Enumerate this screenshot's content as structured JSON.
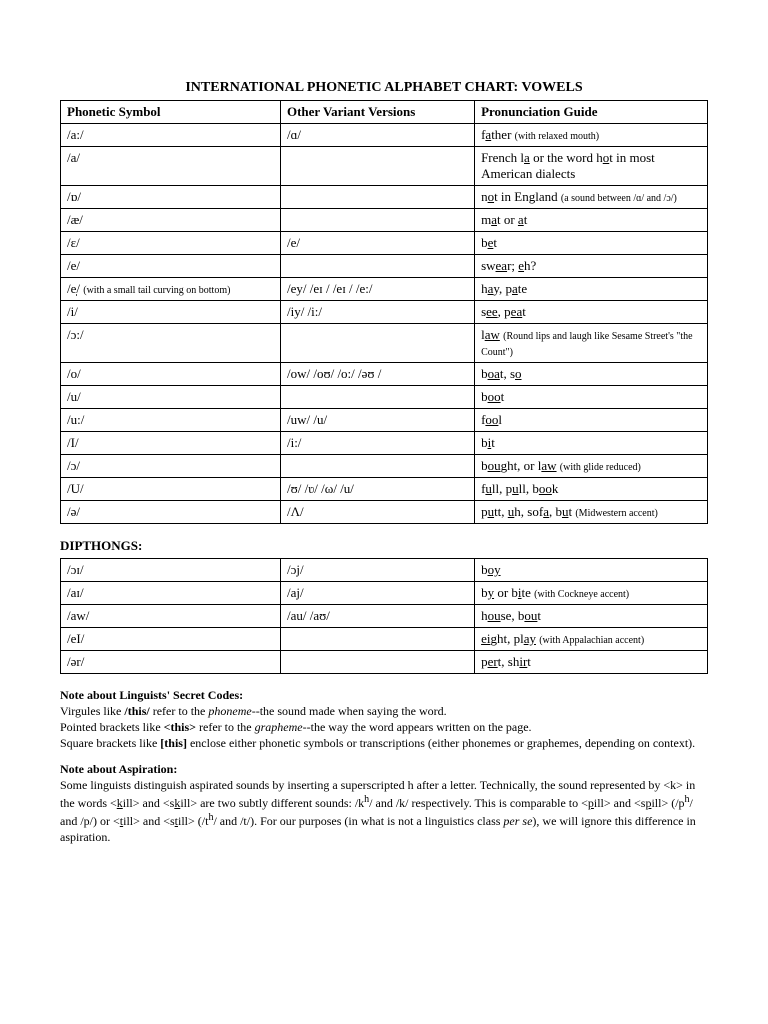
{
  "title": "INTERNATIONAL PHONETIC ALPHABET CHART: VOWELS",
  "headers": {
    "c1": "Phonetic Symbol",
    "c2": "Other Variant Versions",
    "c3": "Pronunciation Guide"
  },
  "vowels": [
    {
      "c1": "/a:/",
      "c2": "/ɑ/",
      "c3": "f<u>a</u>ther <span class='small'>(with relaxed mouth)</span>"
    },
    {
      "c1": "/a/",
      "c2": "",
      "c3": "French l<u>a</u> or the word h<u>o</u>t in most American dialects"
    },
    {
      "c1": "/ɒ/",
      "c2": "",
      "c3": "n<u>o</u>t in England <span class='small'>(a sound between /ɑ/ and /ɔ/)</span>"
    },
    {
      "c1": "/æ/",
      "c2": "",
      "c3": "m<u>a</u>t or <u>a</u>t"
    },
    {
      "c1": "/ɛ/",
      "c2": "/e/",
      "c3": "b<u>e</u>t"
    },
    {
      "c1": "/e/",
      "c2": "",
      "c3": "sw<u>ea</u>r; <u>e</u>h?"
    },
    {
      "c1": "/e̩/ <span class='small'>(with a small tail curving on bottom)</span>",
      "c2": "/ey/  /eɪ /  /eɪ /  /e:/",
      "c3": "h<u>a</u>y, p<u>a</u>te"
    },
    {
      "c1": "/i/",
      "c2": "/iy/  /i:/",
      "c3": "s<u>ee</u>, p<u>ea</u>t"
    },
    {
      "c1": "/ɔ:/",
      "c2": "",
      "c3": "l<u>aw</u> <span class='small'>(Round lips and laugh like Sesame Street's &quot;the Count&quot;)</span>"
    },
    {
      "c1": "/o/",
      "c2": "/ow/  /oʊ/  /o:/  /əʊ /",
      "c3": "b<u>oa</u>t, s<u>o</u>"
    },
    {
      "c1": "/u/",
      "c2": "",
      "c3": "b<u>oo</u>t"
    },
    {
      "c1": "/u:/",
      "c2": "/uw/  /u/",
      "c3": "f<u>oo</u>l"
    },
    {
      "c1": "/I/",
      "c2": "/i:/",
      "c3": "b<u>i</u>t"
    },
    {
      "c1": "/ɔ/",
      "c2": "",
      "c3": "b<u>ou</u>ght, or l<u>aw</u> <span class='small'>(with glide reduced)</span>"
    },
    {
      "c1": "/U/",
      "c2": "/ʊ/  /ʋ/  /ω/  /u/",
      "c3": "f<u>u</u>ll, p<u>u</u>ll, b<u>oo</u>k"
    },
    {
      "c1": "/ə/",
      "c2": "/Λ/",
      "c3": "p<u>u</u>tt, <u>u</u>h, sof<u>a</u>, b<u>u</u>t <span class='small'>(Midwestern accent)</span>"
    }
  ],
  "dipthongs_heading": "DIPTHONGS:",
  "dipthongs": [
    {
      "c1": "/ɔɪ/",
      "c2": "/ɔj/",
      "c3": "b<u>oy</u>"
    },
    {
      "c1": "/aɪ/",
      "c2": "/aj/",
      "c3": "b<u>y</u> or b<u>i</u>te <span class='small'>(with Cockneye accent)</span>"
    },
    {
      "c1": "/aw/",
      "c2": "/au/  /aʊ/",
      "c3": "h<u>ou</u>se, b<u>ou</u>t"
    },
    {
      "c1": "/eI/",
      "c2": "",
      "c3": "<u>ei</u>ght, pl<u>ay</u> <span class='small'>(with Appalachian accent)</span>"
    },
    {
      "c1": "/ər/",
      "c2": "",
      "c3": "p<u>er</u>t, sh<u>ir</u>t"
    }
  ],
  "notes1_heading": "Note about Linguists' Secret Codes:",
  "notes1_body": "Virgules like <b>/this/</b> refer to the <span class='i'>phoneme</span>--the sound made when saying the word.<br>Pointed brackets like <b>&lt;this&gt;</b> refer to the <span class='i'>grapheme</span>--the way the word appears written on the page.<br>Square brackets like <b>[this]</b> enclose either phonetic symbols or transcriptions (either phonemes or graphemes, depending on context).",
  "notes2_heading": "Note about Aspiration:",
  "notes2_body": "Some linguists distinguish aspirated sounds by inserting a superscripted h after a letter. Technically, the sound represented by &lt;k&gt; in the words &lt;<u>k</u>ill&gt; and &lt;s<u>k</u>ill&gt; are two subtly different sounds: /k<sup>h</sup>/ and /k/ respectively. This is comparable to &lt;<u>p</u>ill&gt; and &lt;s<u>p</u>ill&gt; (/p<sup>h</sup>/ and /p/) or &lt;<u>t</u>ill&gt; and &lt;s<u>t</u>ill&gt; (/t<sup>h</sup>/ and /t/). For our purposes (in what is not a linguistics class <span class='i'>per se</span>), we will ignore this difference in aspiration."
}
